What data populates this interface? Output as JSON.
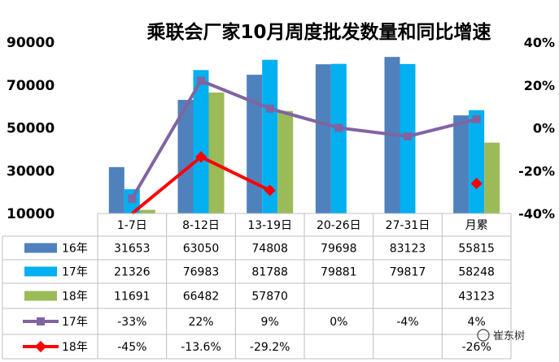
{
  "chart_data": {
    "type": "bar",
    "title": "乘联会厂家10月周度批发数量和同比增速",
    "categories": [
      "1-7日",
      "8-12日",
      "13-19日",
      "20-26日",
      "27-31日",
      "月累"
    ],
    "left_axis": {
      "range": [
        10000,
        90000
      ],
      "ticks": [
        "10000",
        "30000",
        "50000",
        "70000",
        "90000"
      ]
    },
    "right_axis": {
      "range": [
        -40,
        40
      ],
      "ticks": [
        "-40%",
        "-20%",
        "0%",
        "20%",
        "40%"
      ]
    },
    "grid": false,
    "series": [
      {
        "name": "16年",
        "kind": "bar",
        "color": "#4F81BD",
        "values": [
          31653,
          63050,
          74808,
          79698,
          83123,
          55815
        ],
        "labels": [
          "31653",
          "63050",
          "74808",
          "79698",
          "83123",
          "55815"
        ]
      },
      {
        "name": "17年",
        "kind": "bar",
        "color": "#00B0F0",
        "values": [
          21326,
          76983,
          81788,
          79881,
          79817,
          58248
        ],
        "labels": [
          "21326",
          "76983",
          "81788",
          "79881",
          "79817",
          "58248"
        ]
      },
      {
        "name": "18年",
        "kind": "bar",
        "color": "#9BBB59",
        "values": [
          11691,
          66482,
          57870,
          null,
          null,
          43123
        ],
        "labels": [
          "11691",
          "66482",
          "57870",
          "",
          "",
          "43123"
        ]
      },
      {
        "name": "17年",
        "kind": "line",
        "axis": "right",
        "color": "#8064A2",
        "values": [
          -33,
          22,
          9,
          0,
          -4,
          4
        ],
        "labels": [
          "-33%",
          "22%",
          "9%",
          "0%",
          "-4%",
          "4%"
        ]
      },
      {
        "name": "18年",
        "kind": "line",
        "axis": "right",
        "color": "#FF0000",
        "values": [
          -45,
          -13.6,
          -29.2,
          null,
          null,
          -26
        ],
        "labels": [
          "-45%",
          "-13.6%",
          "-29.2%",
          "",
          "",
          "-26%"
        ]
      }
    ]
  },
  "watermark": {
    "text": "崔东树"
  }
}
